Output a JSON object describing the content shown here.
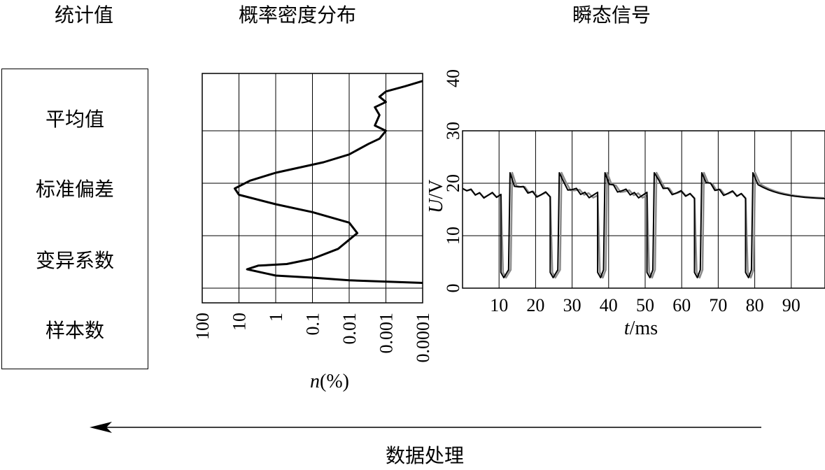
{
  "titles": {
    "stats": "统计值",
    "pdf": "概率密度分布",
    "signal": "瞬态信号"
  },
  "stats_items": [
    "平均值",
    "标准偏差",
    "变异系数",
    "样本数"
  ],
  "arrow_caption": "数据处理",
  "chart_data": [
    {
      "type": "line",
      "name": "pdf",
      "x_scale": "log-reversed",
      "x_ticks": [
        "100",
        "10",
        "1",
        "0.1",
        "0.01",
        "0.001",
        "0.0001"
      ],
      "xlabel_italic": "n",
      "xlabel_rest": "(%)",
      "ylim": [
        0,
        40
      ],
      "comment_shape": "density vs voltage (voltage shared with right chart axis)",
      "points": [
        {
          "n": 0.0001,
          "u": 1.0
        },
        {
          "n": 0.01,
          "u": 1.5
        },
        {
          "n": 0.1,
          "u": 2.0
        },
        {
          "n": 1,
          "u": 2.4
        },
        {
          "n": 6,
          "u": 3.6
        },
        {
          "n": 3,
          "u": 4.3
        },
        {
          "n": 0.5,
          "u": 4.6
        },
        {
          "n": 0.1,
          "u": 5.6
        },
        {
          "n": 0.02,
          "u": 7.5
        },
        {
          "n": 0.006,
          "u": 10.5
        },
        {
          "n": 0.01,
          "u": 12.5
        },
        {
          "n": 0.1,
          "u": 14.5
        },
        {
          "n": 1,
          "u": 16.0
        },
        {
          "n": 10,
          "u": 17.8
        },
        {
          "n": 13,
          "u": 19.0
        },
        {
          "n": 5,
          "u": 20.5
        },
        {
          "n": 1,
          "u": 22.0
        },
        {
          "n": 0.05,
          "u": 24.0
        },
        {
          "n": 0.01,
          "u": 25.5
        },
        {
          "n": 0.003,
          "u": 27.5
        },
        {
          "n": 0.0015,
          "u": 28.5
        },
        {
          "n": 0.001,
          "u": 30.0
        },
        {
          "n": 0.002,
          "u": 31.0
        },
        {
          "n": 0.0015,
          "u": 33.0
        },
        {
          "n": 0.002,
          "u": 34.5
        },
        {
          "n": 0.001,
          "u": 35.5
        },
        {
          "n": 0.0015,
          "u": 36.5
        },
        {
          "n": 0.001,
          "u": 37.5
        },
        {
          "n": 0.0003,
          "u": 38.5
        },
        {
          "n": 0.0001,
          "u": 39.5
        }
      ]
    },
    {
      "type": "line",
      "name": "signal",
      "xlim": [
        0,
        100
      ],
      "x_ticks": [
        10,
        20,
        30,
        40,
        50,
        60,
        70,
        80,
        90
      ],
      "xlabel_italic": "t",
      "xlabel_rest": "/ms",
      "ylim": [
        0,
        40
      ],
      "y_ticks": [
        0,
        10,
        20,
        30,
        40
      ],
      "ylabel_italic": "U",
      "ylabel_rest": "/V",
      "pulses": [
        {
          "fall": 10.5,
          "rise": 13.0
        },
        {
          "fall": 24.0,
          "rise": 26.5
        },
        {
          "fall": 37.0,
          "rise": 39.0
        },
        {
          "fall": 50.5,
          "rise": 52.5
        },
        {
          "fall": 63.5,
          "rise": 65.5
        },
        {
          "fall": 77.5,
          "rise": 79.5
        }
      ],
      "base_level": 17.5,
      "peak_level": 22,
      "low_level": 2
    }
  ]
}
